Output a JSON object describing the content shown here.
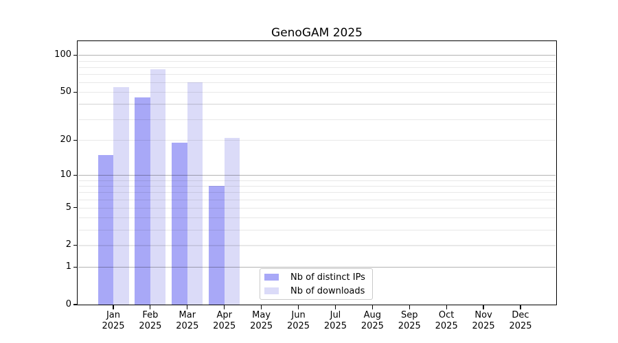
{
  "title": "GenoGAM 2025",
  "colors": {
    "bar_distinct_ips": "#a8a8f7",
    "bar_downloads": "#dbdbf8",
    "major_gridline": "#b0b0b0",
    "minor_gridline": "#e9e9e9",
    "axis": "#000000",
    "legend_border": "#c9c9c9",
    "background": "#ffffff"
  },
  "chart_data": {
    "type": "bar",
    "title": "GenoGAM 2025",
    "year": "2025",
    "categories": [
      "Jan",
      "Feb",
      "Mar",
      "Apr",
      "May",
      "Jun",
      "Jul",
      "Aug",
      "Sep",
      "Oct",
      "Nov",
      "Dec"
    ],
    "series": [
      {
        "name": "Nb of distinct IPs",
        "color": "#a8a8f7",
        "values": [
          15,
          45,
          19,
          8,
          0,
          0,
          0,
          0,
          0,
          0,
          0,
          0
        ]
      },
      {
        "name": "Nb of downloads",
        "color": "#dbdbf8",
        "values": [
          55,
          77,
          60,
          21,
          0,
          0,
          0,
          0,
          0,
          0,
          0,
          0
        ]
      }
    ],
    "xlabel": "",
    "ylabel": "",
    "y_scale": "log1p",
    "ylim": [
      0,
      130
    ],
    "y_ticks": [
      0,
      1,
      2,
      5,
      10,
      20,
      50,
      100
    ],
    "y_major_gridlines": [
      1,
      10,
      100
    ],
    "y_minor_gridlines": [
      2,
      3,
      4,
      5,
      6,
      7,
      8,
      9,
      20,
      30,
      40,
      50,
      60,
      70,
      80,
      90
    ],
    "grid": "horizontal",
    "legend_position": "inside-bottom-center"
  }
}
